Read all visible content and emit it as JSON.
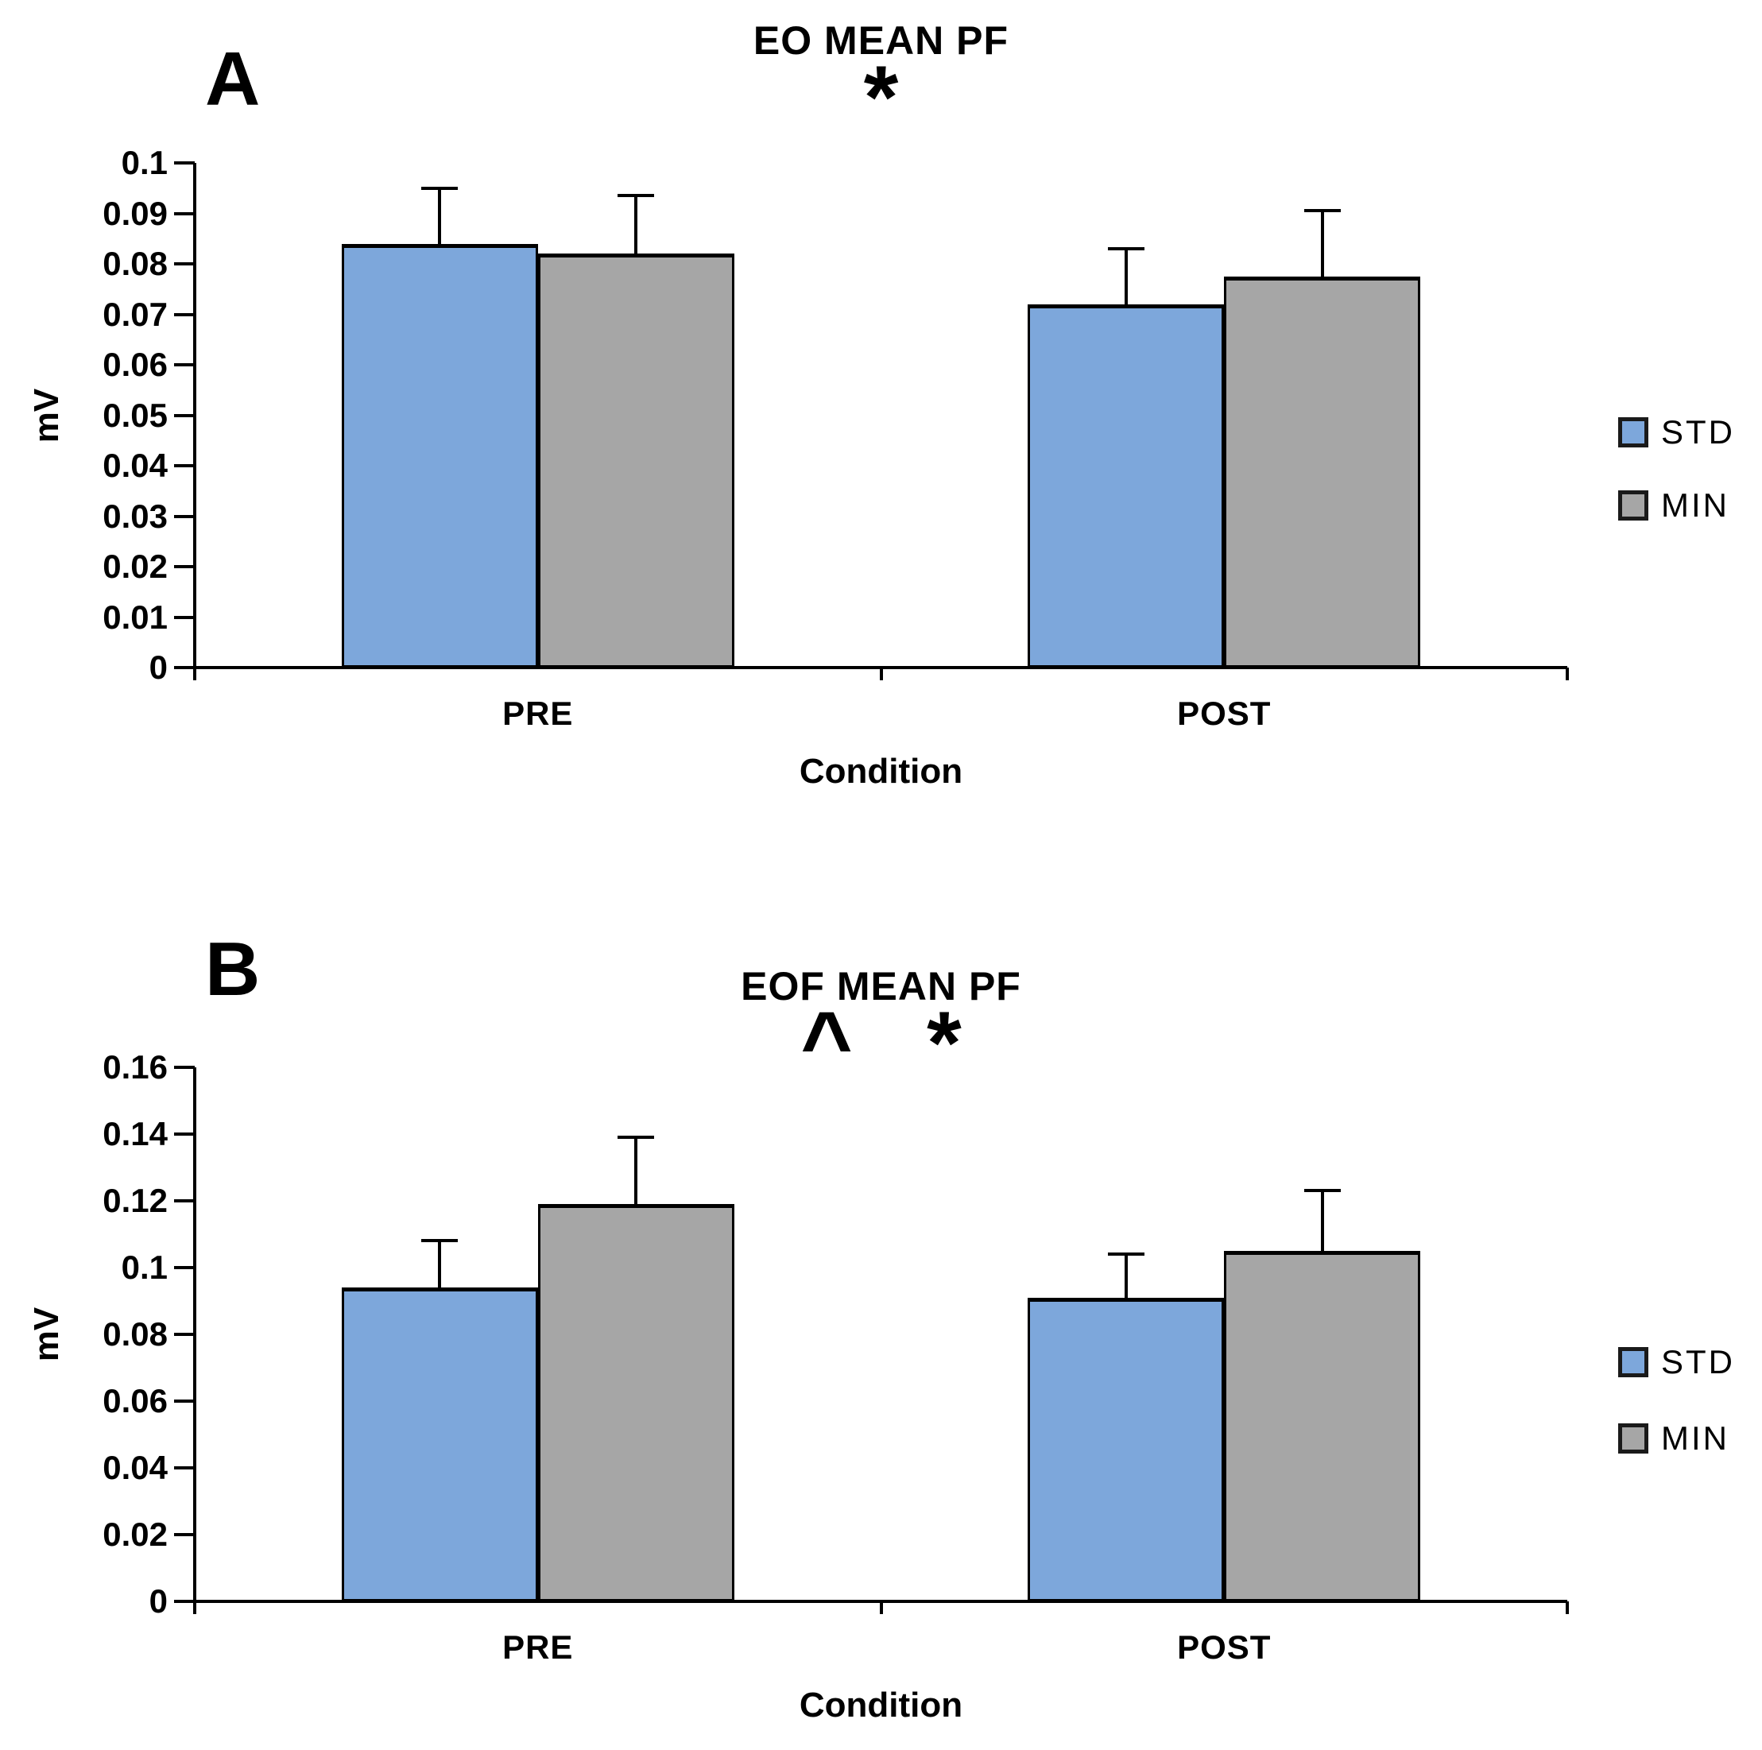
{
  "page": {
    "background": "#ffffff"
  },
  "colors": {
    "std_blue": "#7DA7DB",
    "min_gray": "#A6A6A6",
    "axis_black": "#000000"
  },
  "chart_data": [
    {
      "type": "bar",
      "panel_label": "A",
      "title": "EO MEAN PF",
      "annotation": "*",
      "xlabel": "Condition",
      "ylabel": "mV",
      "categories": [
        "PRE",
        "POST"
      ],
      "series": [
        {
          "name": "STD",
          "color": "#7DA7DB",
          "values": [
            0.084,
            0.072
          ],
          "errors": [
            0.011,
            0.011
          ]
        },
        {
          "name": "MIN",
          "color": "#A6A6A6",
          "values": [
            0.082,
            0.0775
          ],
          "errors": [
            0.0115,
            0.013
          ]
        }
      ],
      "ylim": [
        0,
        0.1
      ],
      "ytick_step": 0.01,
      "ytick_labels": [
        "0",
        "0.01",
        "0.02",
        "0.03",
        "0.04",
        "0.05",
        "0.06",
        "0.07",
        "0.08",
        "0.09",
        "0.1"
      ],
      "error_bars": "upper only, capped",
      "grid": false,
      "legend_position": "right"
    },
    {
      "type": "bar",
      "panel_label": "B",
      "title": "EOF MEAN PF",
      "annotation": "^   *",
      "xlabel": "Condition",
      "ylabel": "mV",
      "categories": [
        "PRE",
        "POST"
      ],
      "series": [
        {
          "name": "STD",
          "color": "#7DA7DB",
          "values": [
            0.094,
            0.091
          ],
          "errors": [
            0.014,
            0.013
          ]
        },
        {
          "name": "MIN",
          "color": "#A6A6A6",
          "values": [
            0.119,
            0.105
          ],
          "errors": [
            0.02,
            0.018
          ]
        }
      ],
      "ylim": [
        0,
        0.16
      ],
      "ytick_step": 0.02,
      "ytick_labels": [
        "0",
        "0.02",
        "0.04",
        "0.06",
        "0.08",
        "0.1",
        "0.12",
        "0.14",
        "0.16"
      ],
      "error_bars": "upper only, capped",
      "grid": false,
      "legend_position": "right"
    }
  ]
}
